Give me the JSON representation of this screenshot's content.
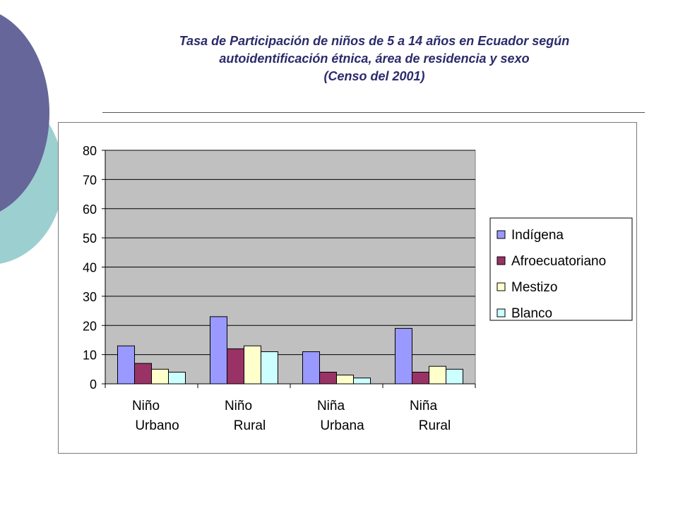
{
  "slide": {
    "title_lines": [
      "Tasa de Participación de niños de 5 a 14 años en Ecuador según",
      "autoidentificación étnica, área de residencia y sexo",
      "(Censo del 2001)"
    ],
    "colors": {
      "deco_purple": "#66669a",
      "deco_teal": "#9cd0d0",
      "title_text": "#2b2b6b"
    }
  },
  "chart_data": {
    "type": "bar",
    "title": "Tasa de Participación de niños de 5 a 14 años en Ecuador según autoidentificación étnica, área de residencia y sexo (Censo del 2001)",
    "categories": [
      [
        "Niño",
        "Urbano"
      ],
      [
        "Niño",
        "Rural"
      ],
      [
        "Niña",
        "Urbana"
      ],
      [
        "Niña",
        "Rural"
      ]
    ],
    "series": [
      {
        "name": "Indígena",
        "color": "#9999ff",
        "values": [
          13,
          23,
          11,
          19
        ]
      },
      {
        "name": "Afroecuatoriano",
        "color": "#993366",
        "values": [
          7,
          12,
          4,
          4
        ]
      },
      {
        "name": "Mestizo",
        "color": "#ffffcc",
        "values": [
          5,
          13,
          3,
          6
        ]
      },
      {
        "name": "Blanco",
        "color": "#ccffff",
        "values": [
          4,
          11,
          2,
          5
        ]
      }
    ],
    "ylim": [
      0,
      80
    ],
    "yticks": [
      0,
      10,
      20,
      30,
      40,
      50,
      60,
      70,
      80
    ],
    "xlabel": "",
    "ylabel": "",
    "grid": true,
    "plot_background": "#c0c0c0",
    "legend_position": "right"
  }
}
